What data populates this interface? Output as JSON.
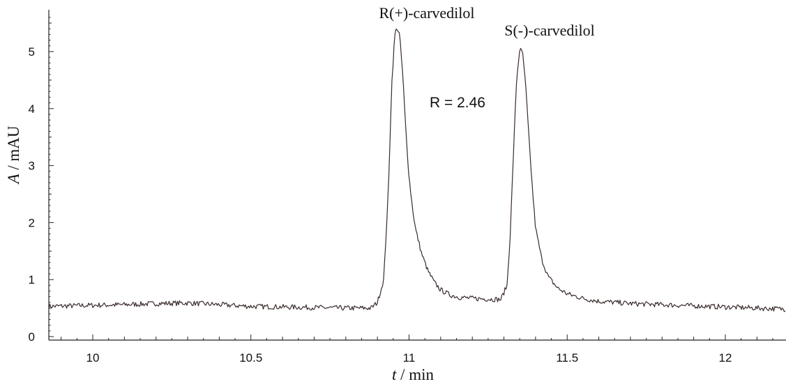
{
  "chart_data": {
    "type": "line",
    "title": "",
    "xlabel": {
      "italic": "t",
      "rest": " / min"
    },
    "ylabel": {
      "italic": "A",
      "rest": " / mAU"
    },
    "xlim": [
      9.86,
      12.21
    ],
    "ylim": [
      -0.05,
      5.7
    ],
    "x_ticks": [
      10,
      10.5,
      11,
      11.5,
      12
    ],
    "x_tick_labels": [
      "10",
      "10.5",
      "11",
      "11.5",
      "12"
    ],
    "y_ticks": [
      0,
      1,
      2,
      3,
      4,
      5
    ],
    "y_tick_labels": [
      "0",
      "1",
      "2",
      "3",
      "4",
      "5"
    ],
    "grid": false,
    "line_color": "#3a2a2a",
    "series": [
      {
        "name": "",
        "x": [
          9.86,
          10.0,
          10.1,
          10.2,
          10.3,
          10.4,
          10.5,
          10.6,
          10.7,
          10.8,
          10.88,
          10.9,
          10.92,
          10.935,
          10.945,
          10.955,
          10.962,
          10.97,
          10.98,
          10.99,
          11.0,
          11.01,
          11.02,
          11.04,
          11.06,
          11.08,
          11.1,
          11.13,
          11.16,
          11.2,
          11.25,
          11.29,
          11.31,
          11.32,
          11.33,
          11.34,
          11.35,
          11.36,
          11.37,
          11.38,
          11.39,
          11.4,
          11.42,
          11.44,
          11.47,
          11.5,
          11.55,
          11.6,
          11.7,
          11.8,
          11.9,
          12.0,
          12.1,
          12.21
        ],
        "y": [
          0.53,
          0.55,
          0.56,
          0.58,
          0.59,
          0.56,
          0.53,
          0.52,
          0.51,
          0.5,
          0.5,
          0.6,
          1.0,
          2.6,
          4.4,
          5.3,
          5.42,
          5.3,
          4.6,
          3.6,
          2.8,
          2.3,
          1.9,
          1.45,
          1.15,
          0.95,
          0.82,
          0.73,
          0.69,
          0.67,
          0.66,
          0.65,
          0.9,
          1.8,
          3.2,
          4.5,
          5.05,
          4.95,
          4.3,
          3.4,
          2.6,
          1.9,
          1.35,
          1.05,
          0.85,
          0.75,
          0.67,
          0.62,
          0.58,
          0.56,
          0.54,
          0.52,
          0.5,
          0.48
        ]
      }
    ],
    "annotations": [
      {
        "text": "R(+)-carvedilol",
        "x": 10.962,
        "y": 5.42
      },
      {
        "text": "S(-)-carvedilol",
        "x": 11.35,
        "y": 5.05
      },
      {
        "text": "R = 2.46",
        "x": 11.15,
        "y": 4.15
      }
    ]
  }
}
